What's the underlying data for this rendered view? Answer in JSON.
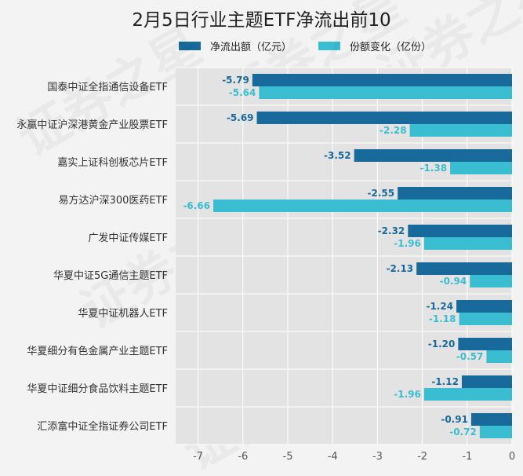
{
  "title": "2月5日行业主题ETF净流出前10",
  "colors": {
    "net_outflow": "#186a9a",
    "share_change": "#3bbdd1",
    "plot_bg": "#e3e3e3",
    "grid": "#ffffff"
  },
  "chart_data": {
    "type": "bar",
    "orientation": "horizontal",
    "title": "2月5日行业主题ETF净流出前10",
    "legend_position": "top",
    "categories": [
      "国泰中证全指通信设备ETF",
      "永赢中证沪深港黄金产业股票ETF",
      "嘉实上证科创板芯片ETF",
      "易方达沪深300医药ETF",
      "广发中证传媒ETF",
      "华夏中证5G通信主题ETF",
      "华夏中证机器人ETF",
      "华夏细分有色金属产业主题ETF",
      "华夏中证细分食品饮料主题ETF",
      "汇添富中证全指证券公司ETF"
    ],
    "series": [
      {
        "name": "净流出额（亿元）",
        "color": "#186a9a",
        "values": [
          -5.79,
          -5.69,
          -3.52,
          -2.55,
          -2.32,
          -2.13,
          -1.24,
          -1.2,
          -1.12,
          -0.91
        ]
      },
      {
        "name": "份额变化（亿份）",
        "color": "#3bbdd1",
        "values": [
          -5.64,
          -2.28,
          -1.38,
          -6.66,
          -1.96,
          -0.94,
          -1.18,
          -0.57,
          -1.96,
          -0.72
        ]
      }
    ],
    "xlim": [
      -7.5,
      0
    ],
    "xticks": [
      -7,
      -6,
      -5,
      -4,
      -3,
      -2,
      -1,
      0
    ],
    "watermark": "证券之星"
  }
}
